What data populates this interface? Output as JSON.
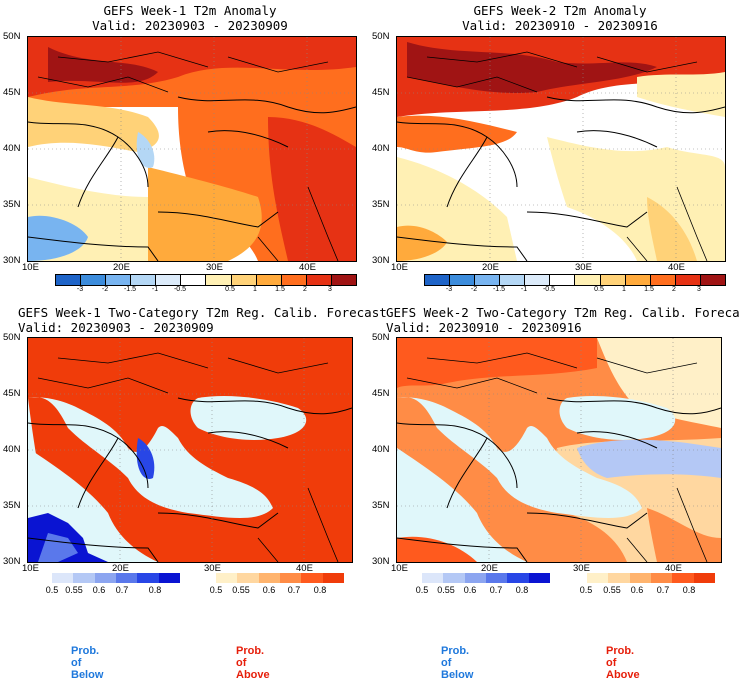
{
  "panels": [
    {
      "title_line1": "GEFS Week-1 T2m Anomaly",
      "title_line2": "Valid: 20230903 - 20230909"
    },
    {
      "title_line1": "GEFS Week-2 T2m Anomaly",
      "title_line2": "Valid: 20230910 - 20230916"
    },
    {
      "title_line1": "GEFS Week-1 Two-Category T2m Reg. Calib. Forecast",
      "title_line2": "Valid: 20230903 - 20230909"
    },
    {
      "title_line1": "GEFS Week-2 Two-Category T2m Reg. Calib. Forecast",
      "title_line2": "Valid: 20230910 - 20230916"
    }
  ],
  "axes": {
    "lat_labels": [
      "50N",
      "45N",
      "40N",
      "35N",
      "30N"
    ],
    "lon_labels": [
      "10E",
      "20E",
      "30E",
      "40E"
    ]
  },
  "anomaly_colorbar": {
    "ticks": [
      "-3",
      "-2",
      "-1.5",
      "-1",
      "-0.5",
      "0.5",
      "1",
      "1.5",
      "2",
      "3"
    ],
    "colors": [
      "#1e64c8",
      "#3c8cdc",
      "#78b4f0",
      "#b4d7f5",
      "#dcebfa",
      "#ffffff",
      "#fff0b4",
      "#ffd278",
      "#ffaa3c",
      "#ff6e1e",
      "#e63214",
      "#a01414"
    ]
  },
  "prob_colorbar_below": {
    "ticks": [
      "0.5",
      "0.55",
      "0.6",
      "0.7",
      "0.8"
    ],
    "colors": [
      "#dce6fa",
      "#b4c8f5",
      "#8ca5f0",
      "#5a78eb",
      "#2846e6",
      "#0a14d2"
    ]
  },
  "prob_colorbar_above": {
    "ticks": [
      "0.5",
      "0.55",
      "0.6",
      "0.7",
      "0.8"
    ],
    "colors": [
      "#fff0c8",
      "#ffd7a0",
      "#ffb46e",
      "#ff8c46",
      "#ff5a1e",
      "#f03c0a"
    ]
  },
  "legend": {
    "below": "Prob. of Below",
    "above": "Prob. of Above"
  },
  "colors": {
    "below_label": "#1e78dc",
    "above_label": "#e61e0a",
    "sea_prob": "#e0f7fa"
  }
}
